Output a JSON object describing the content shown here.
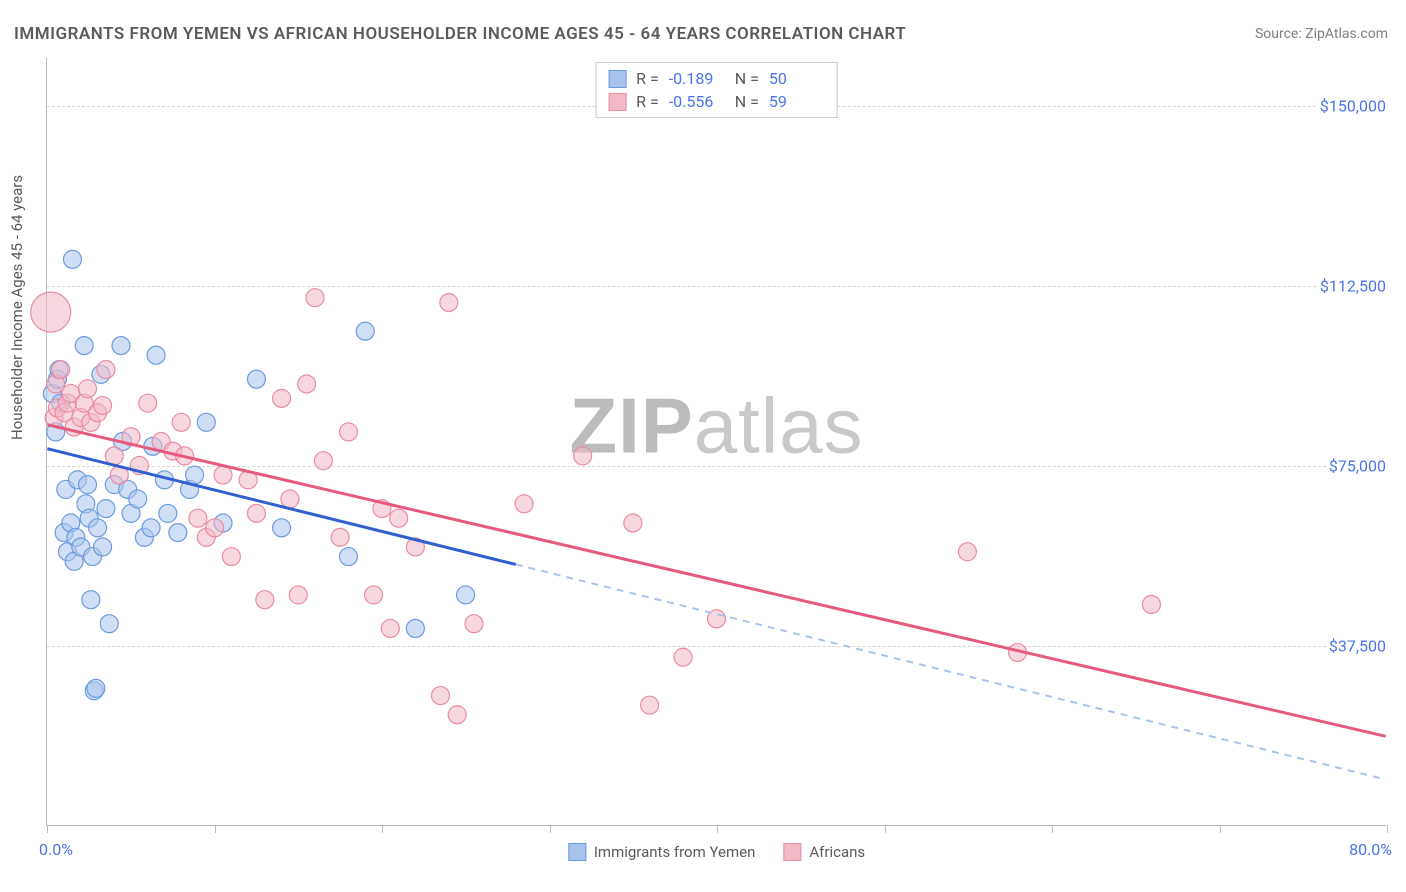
{
  "title": "IMMIGRANTS FROM YEMEN VS AFRICAN HOUSEHOLDER INCOME AGES 45 - 64 YEARS CORRELATION CHART",
  "source": "Source: ZipAtlas.com",
  "ylabel": "Householder Income Ages 45 - 64 years",
  "watermark_a": "ZIP",
  "watermark_b": "atlas",
  "chart": {
    "type": "scatter",
    "background_color": "#ffffff",
    "grid_color": "#d6d6d6",
    "axis_color": "#bbbbbb",
    "label_color": "#5a5a5a",
    "value_color": "#4a74e8",
    "title_fontsize": 17,
    "label_fontsize": 15,
    "tick_fontsize": 16,
    "xlim": [
      0,
      80
    ],
    "ylim": [
      0,
      160000
    ],
    "xaxis_min_label": "0.0%",
    "xaxis_max_label": "80.0%",
    "xtick_positions": [
      0,
      10,
      20,
      30,
      40,
      50,
      60,
      70,
      80
    ],
    "yticks": [
      {
        "value": 37500,
        "label": "$37,500"
      },
      {
        "value": 75000,
        "label": "$75,000"
      },
      {
        "value": 112500,
        "label": "$112,500"
      },
      {
        "value": 150000,
        "label": "$150,000"
      }
    ],
    "series": [
      {
        "name": "Immigrants from Yemen",
        "fill": "#a9c4ec",
        "stroke": "#6b9bde",
        "line_solid": "#2f5fd0",
        "line_dash": "#a9c4ec",
        "fill_opacity": 0.55,
        "marker_r": 9,
        "R": "-0.189",
        "N": "50",
        "trend": {
          "y_at_xmin": 78500,
          "y_at_solid_end": 55000,
          "solid_end_x": 28,
          "y_at_xmax": 9500
        },
        "points": [
          {
            "x": 0.3,
            "y": 90000
          },
          {
            "x": 0.5,
            "y": 82000
          },
          {
            "x": 0.6,
            "y": 93000
          },
          {
            "x": 0.7,
            "y": 95000
          },
          {
            "x": 0.8,
            "y": 88000
          },
          {
            "x": 1.0,
            "y": 61000
          },
          {
            "x": 1.1,
            "y": 70000
          },
          {
            "x": 1.2,
            "y": 57000
          },
          {
            "x": 1.4,
            "y": 63000
          },
          {
            "x": 1.5,
            "y": 118000
          },
          {
            "x": 1.6,
            "y": 55000
          },
          {
            "x": 1.7,
            "y": 60000
          },
          {
            "x": 1.8,
            "y": 72000
          },
          {
            "x": 2.0,
            "y": 58000
          },
          {
            "x": 2.2,
            "y": 100000
          },
          {
            "x": 2.3,
            "y": 67000
          },
          {
            "x": 2.4,
            "y": 71000
          },
          {
            "x": 2.5,
            "y": 64000
          },
          {
            "x": 2.6,
            "y": 47000
          },
          {
            "x": 2.7,
            "y": 56000
          },
          {
            "x": 2.8,
            "y": 28000
          },
          {
            "x": 2.9,
            "y": 28500
          },
          {
            "x": 3.0,
            "y": 62000
          },
          {
            "x": 3.2,
            "y": 94000
          },
          {
            "x": 3.3,
            "y": 58000
          },
          {
            "x": 3.5,
            "y": 66000
          },
          {
            "x": 3.7,
            "y": 42000
          },
          {
            "x": 4.0,
            "y": 71000
          },
          {
            "x": 4.4,
            "y": 100000
          },
          {
            "x": 4.5,
            "y": 80000
          },
          {
            "x": 4.8,
            "y": 70000
          },
          {
            "x": 5.0,
            "y": 65000
          },
          {
            "x": 5.4,
            "y": 68000
          },
          {
            "x": 5.8,
            "y": 60000
          },
          {
            "x": 6.2,
            "y": 62000
          },
          {
            "x": 6.3,
            "y": 79000
          },
          {
            "x": 6.5,
            "y": 98000
          },
          {
            "x": 7.0,
            "y": 72000
          },
          {
            "x": 7.2,
            "y": 65000
          },
          {
            "x": 7.8,
            "y": 61000
          },
          {
            "x": 8.5,
            "y": 70000
          },
          {
            "x": 8.8,
            "y": 73000
          },
          {
            "x": 9.5,
            "y": 84000
          },
          {
            "x": 10.5,
            "y": 63000
          },
          {
            "x": 12.5,
            "y": 93000
          },
          {
            "x": 14.0,
            "y": 62000
          },
          {
            "x": 18.0,
            "y": 56000
          },
          {
            "x": 19.0,
            "y": 103000
          },
          {
            "x": 22.0,
            "y": 41000
          },
          {
            "x": 25.0,
            "y": 48000
          }
        ]
      },
      {
        "name": "Africans",
        "fill": "#f3b8c6",
        "stroke": "#e88ba3",
        "line_solid": "#e55a7d",
        "line_dash": "#f3b8c6",
        "fill_opacity": 0.55,
        "marker_r": 9,
        "R": "-0.556",
        "N": "59",
        "trend": {
          "y_at_xmin": 83500,
          "y_at_solid_end": 18500,
          "solid_end_x": 80,
          "y_at_xmax": 18500
        },
        "points": [
          {
            "x": 0.2,
            "y": 107000,
            "r": 20
          },
          {
            "x": 0.4,
            "y": 85000
          },
          {
            "x": 0.5,
            "y": 92000
          },
          {
            "x": 0.6,
            "y": 87000
          },
          {
            "x": 0.8,
            "y": 95000
          },
          {
            "x": 1.0,
            "y": 86000
          },
          {
            "x": 1.2,
            "y": 88000
          },
          {
            "x": 1.4,
            "y": 90000
          },
          {
            "x": 1.6,
            "y": 83000
          },
          {
            "x": 2.0,
            "y": 85000
          },
          {
            "x": 2.2,
            "y": 88000
          },
          {
            "x": 2.4,
            "y": 91000
          },
          {
            "x": 2.6,
            "y": 84000
          },
          {
            "x": 3.0,
            "y": 86000
          },
          {
            "x": 3.3,
            "y": 87500
          },
          {
            "x": 3.5,
            "y": 95000
          },
          {
            "x": 4.0,
            "y": 77000
          },
          {
            "x": 4.3,
            "y": 73000
          },
          {
            "x": 5.0,
            "y": 81000
          },
          {
            "x": 5.5,
            "y": 75000
          },
          {
            "x": 6.0,
            "y": 88000
          },
          {
            "x": 6.8,
            "y": 80000
          },
          {
            "x": 7.5,
            "y": 78000
          },
          {
            "x": 8.0,
            "y": 84000
          },
          {
            "x": 8.2,
            "y": 77000
          },
          {
            "x": 9.0,
            "y": 64000
          },
          {
            "x": 9.5,
            "y": 60000
          },
          {
            "x": 10.0,
            "y": 62000
          },
          {
            "x": 10.5,
            "y": 73000
          },
          {
            "x": 11.0,
            "y": 56000
          },
          {
            "x": 12.0,
            "y": 72000
          },
          {
            "x": 12.5,
            "y": 65000
          },
          {
            "x": 13.0,
            "y": 47000
          },
          {
            "x": 14.0,
            "y": 89000
          },
          {
            "x": 14.5,
            "y": 68000
          },
          {
            "x": 15.0,
            "y": 48000
          },
          {
            "x": 15.5,
            "y": 92000
          },
          {
            "x": 16.0,
            "y": 110000
          },
          {
            "x": 16.5,
            "y": 76000
          },
          {
            "x": 17.5,
            "y": 60000
          },
          {
            "x": 18.0,
            "y": 82000
          },
          {
            "x": 19.5,
            "y": 48000
          },
          {
            "x": 20.0,
            "y": 66000
          },
          {
            "x": 20.5,
            "y": 41000
          },
          {
            "x": 21.0,
            "y": 64000
          },
          {
            "x": 22.0,
            "y": 58000
          },
          {
            "x": 23.5,
            "y": 27000
          },
          {
            "x": 24.0,
            "y": 109000
          },
          {
            "x": 24.5,
            "y": 23000
          },
          {
            "x": 25.5,
            "y": 42000
          },
          {
            "x": 28.5,
            "y": 67000
          },
          {
            "x": 32.0,
            "y": 77000
          },
          {
            "x": 35.0,
            "y": 63000
          },
          {
            "x": 36.0,
            "y": 25000
          },
          {
            "x": 38.0,
            "y": 35000
          },
          {
            "x": 40.0,
            "y": 43000
          },
          {
            "x": 55.0,
            "y": 57000
          },
          {
            "x": 58.0,
            "y": 36000
          },
          {
            "x": 66.0,
            "y": 46000
          }
        ]
      }
    ]
  },
  "bottom_legend": [
    {
      "label": "Immigrants from Yemen",
      "fill": "#a9c4ec",
      "stroke": "#6b9bde"
    },
    {
      "label": "Africans",
      "fill": "#f3b8c6",
      "stroke": "#e88ba3"
    }
  ]
}
